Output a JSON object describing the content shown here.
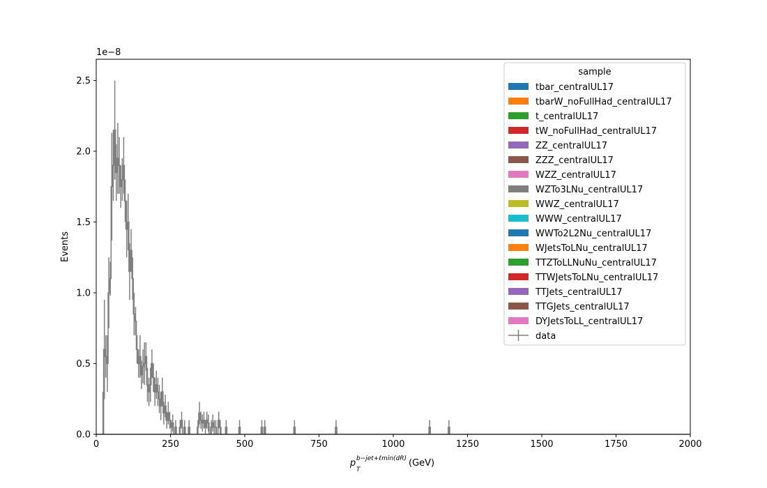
{
  "chart_data": {
    "type": "histogram",
    "xlabel": "(GeV)",
    "xlabel_math": {
      "base": "p",
      "sub": "T",
      "sup": "b−jet+ℓmin(dR)"
    },
    "ylabel": "Events",
    "offset_text": "1e−8",
    "xlim": [
      0,
      2000
    ],
    "ylim": [
      0,
      2.65
    ],
    "xticks": [
      0,
      250,
      500,
      750,
      1000,
      1250,
      1500,
      1750,
      2000
    ],
    "xtick_labels": [
      "0",
      "250",
      "500",
      "750",
      "1000",
      "1250",
      "1500",
      "1750",
      "2000"
    ],
    "yticks": [
      0.0,
      0.5,
      1.0,
      1.5,
      2.0,
      2.5
    ],
    "ytick_labels": [
      "0.0",
      "0.5",
      "1.0",
      "1.5",
      "2.0",
      "2.5"
    ],
    "y_scale_note": "values in units of 1e-8",
    "legend": {
      "title": "sample",
      "placement": "top-right",
      "entries": [
        {
          "label": "tbar_centralUL17",
          "color": "#1f77b4"
        },
        {
          "label": "tbarW_noFullHad_centralUL17",
          "color": "#ff7f0e"
        },
        {
          "label": "t_centralUL17",
          "color": "#2ca02c"
        },
        {
          "label": "tW_noFullHad_centralUL17",
          "color": "#d62728"
        },
        {
          "label": "ZZ_centralUL17",
          "color": "#9467bd"
        },
        {
          "label": "ZZZ_centralUL17",
          "color": "#8c564b"
        },
        {
          "label": "WZZ_centralUL17",
          "color": "#e377c2"
        },
        {
          "label": "WZTo3LNu_centralUL17",
          "color": "#7f7f7f"
        },
        {
          "label": "WWZ_centralUL17",
          "color": "#bcbd22"
        },
        {
          "label": "WWW_centralUL17",
          "color": "#17becf"
        },
        {
          "label": "WWTo2L2Nu_centralUL17",
          "color": "#1f77b4"
        },
        {
          "label": "WJetsToLNu_centralUL17",
          "color": "#ff7f0e"
        },
        {
          "label": "TTZToLLNuNu_centralUL17",
          "color": "#2ca02c"
        },
        {
          "label": "TTWJetsToLNu_centralUL17",
          "color": "#d62728"
        },
        {
          "label": "TTJets_centralUL17",
          "color": "#9467bd"
        },
        {
          "label": "TTGJets_centralUL17",
          "color": "#8c564b"
        },
        {
          "label": "DYJetsToLL_centralUL17",
          "color": "#e377c2"
        }
      ],
      "data_entry": {
        "label": "data",
        "color": "#7f7f7f"
      }
    },
    "series": [
      {
        "name": "data",
        "style": "step-errorbar",
        "color": "#7f7f7f",
        "bin_width": 5,
        "points": [
          [
            20,
            0.0,
            0.3
          ],
          [
            25,
            0.6,
            0.35
          ],
          [
            30,
            0.55,
            0.15
          ],
          [
            35,
            0.5,
            0.2
          ],
          [
            40,
            1.0,
            0.25
          ],
          [
            45,
            1.1,
            0.12
          ],
          [
            50,
            1.75,
            0.38
          ],
          [
            55,
            1.9,
            0.25
          ],
          [
            60,
            2.15,
            0.35
          ],
          [
            65,
            1.85,
            0.2
          ],
          [
            70,
            1.95,
            0.25
          ],
          [
            75,
            1.9,
            0.2
          ],
          [
            80,
            1.75,
            0.15
          ],
          [
            85,
            1.8,
            0.15
          ],
          [
            90,
            1.9,
            0.2
          ],
          [
            95,
            1.65,
            0.15
          ],
          [
            100,
            1.45,
            0.2
          ],
          [
            105,
            1.5,
            0.2
          ],
          [
            110,
            1.15,
            0.2
          ],
          [
            115,
            1.3,
            0.15
          ],
          [
            120,
            1.1,
            0.15
          ],
          [
            125,
            0.85,
            0.15
          ],
          [
            130,
            0.8,
            0.1
          ],
          [
            135,
            0.6,
            0.1
          ],
          [
            140,
            0.5,
            0.1
          ],
          [
            145,
            0.55,
            0.15
          ],
          [
            150,
            0.42,
            0.1
          ],
          [
            155,
            0.48,
            0.12
          ],
          [
            160,
            0.5,
            0.15
          ],
          [
            165,
            0.55,
            0.1
          ],
          [
            170,
            0.35,
            0.12
          ],
          [
            175,
            0.3,
            0.1
          ],
          [
            180,
            0.35,
            0.12
          ],
          [
            185,
            0.5,
            0.1
          ],
          [
            190,
            0.4,
            0.1
          ],
          [
            195,
            0.3,
            0.1
          ],
          [
            200,
            0.35,
            0.1
          ],
          [
            205,
            0.3,
            0.1
          ],
          [
            210,
            0.25,
            0.1
          ],
          [
            215,
            0.2,
            0.1
          ],
          [
            220,
            0.3,
            0.1
          ],
          [
            225,
            0.15,
            0.08
          ],
          [
            230,
            0.2,
            0.08
          ],
          [
            235,
            0.1,
            0.06
          ],
          [
            240,
            0.15,
            0.08
          ],
          [
            245,
            0.1,
            0.06
          ],
          [
            250,
            0.05,
            0.05
          ],
          [
            255,
            0.08,
            0.06
          ],
          [
            265,
            0.05,
            0.05
          ],
          [
            280,
            0.05,
            0.05
          ],
          [
            285,
            0.1,
            0.06
          ],
          [
            295,
            0.05,
            0.05
          ],
          [
            310,
            0.05,
            0.05
          ],
          [
            340,
            0.05,
            0.05
          ],
          [
            345,
            0.15,
            0.08
          ],
          [
            350,
            0.1,
            0.06
          ],
          [
            355,
            0.08,
            0.06
          ],
          [
            360,
            0.1,
            0.06
          ],
          [
            365,
            0.05,
            0.05
          ],
          [
            370,
            0.1,
            0.06
          ],
          [
            375,
            0.08,
            0.06
          ],
          [
            385,
            0.05,
            0.05
          ],
          [
            390,
            0.08,
            0.06
          ],
          [
            395,
            0.05,
            0.05
          ],
          [
            400,
            0.05,
            0.05
          ],
          [
            410,
            0.1,
            0.06
          ],
          [
            415,
            0.05,
            0.05
          ],
          [
            435,
            0.05,
            0.05
          ],
          [
            480,
            0.05,
            0.05
          ],
          [
            555,
            0.05,
            0.05
          ],
          [
            565,
            0.05,
            0.05
          ],
          [
            665,
            0.05,
            0.05
          ],
          [
            805,
            0.05,
            0.05
          ],
          [
            1120,
            0.05,
            0.05
          ],
          [
            1185,
            0.05,
            0.05
          ]
        ]
      }
    ]
  }
}
